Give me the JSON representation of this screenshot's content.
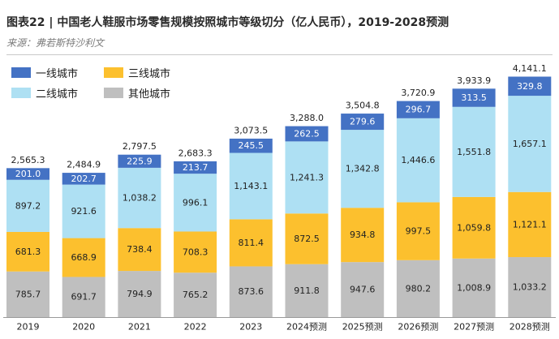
{
  "header": {
    "title": "图表22 | 中国老人鞋服市场零售规模按照城市等级切分（亿人民币），2019-2028预测",
    "source": "来源：弗若斯特沙利文"
  },
  "chart_data": {
    "type": "bar",
    "stacked": true,
    "title": "图表22 | 中国老人鞋服市场零售规模按照城市等级切分（亿人民币），2019-2028预测",
    "categories": [
      "2019",
      "2020",
      "2021",
      "2022",
      "2023",
      "2024预测",
      "2025预测",
      "2026预测",
      "2027预测",
      "2028预测"
    ],
    "series": [
      {
        "name": "其他城市",
        "color": "#BFBFBF",
        "values": [
          "785.7",
          "691.7",
          "794.9",
          "765.2",
          "873.6",
          "911.8",
          "947.6",
          "980.2",
          "1,008.9",
          "1,033.2"
        ]
      },
      {
        "name": "三线城市",
        "color": "#FCC02E",
        "values": [
          "681.3",
          "668.9",
          "738.4",
          "708.3",
          "811.4",
          "872.5",
          "934.8",
          "997.5",
          "1,059.8",
          "1,121.1"
        ]
      },
      {
        "name": "二线城市",
        "color": "#AEE0F3",
        "values": [
          "897.2",
          "921.6",
          "1,038.2",
          "996.1",
          "1,143.1",
          "1,241.3",
          "1,342.8",
          "1,446.6",
          "1,551.8",
          "1,657.1"
        ]
      },
      {
        "name": "一线城市",
        "color": "#4472C4",
        "values": [
          "201.0",
          "202.7",
          "225.9",
          "213.7",
          "245.5",
          "262.5",
          "279.6",
          "296.7",
          "313.5",
          "329.8"
        ]
      }
    ],
    "totals": [
      "2,565.3",
      "2,484.9",
      "2,797.5",
      "2,683.3",
      "3,073.5",
      "3,288.0",
      "3,504.8",
      "3,720.9",
      "3,933.9",
      "4,141.1"
    ],
    "legend": [
      "一线城市",
      "三线城市",
      "二线城市",
      "其他城市"
    ],
    "legend_position": "top-left",
    "xlabel": "",
    "ylabel": "",
    "grid": false
  }
}
